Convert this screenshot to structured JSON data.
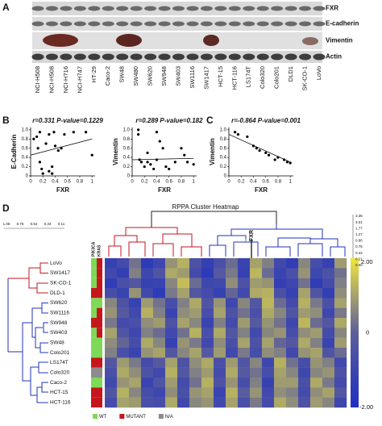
{
  "panel_a": {
    "label": "A",
    "proteins": [
      "FXR",
      "E-cadherin",
      "Vimentin",
      "Actin"
    ],
    "cell_lines": [
      "NCI-H508",
      "NCI-H508",
      "NCI-H716",
      "NCI-H747",
      "HT-29",
      "Caco-2",
      "SW48",
      "SW480",
      "SW620",
      "SW948",
      "SW403",
      "SW1116",
      "SW1417",
      "HCT-15",
      "HCT-116",
      "LS174T",
      "Colo320",
      "Colo201",
      "DLD1",
      "SK-CO-1",
      "LoVo"
    ]
  },
  "panel_b": {
    "label": "B",
    "plots": [
      {
        "title": "r=0.331 P-value=0.1229",
        "xlabel": "FXR",
        "ylabel": "E-Cadherin",
        "x": [
          0.05,
          0.1,
          0.12,
          0.15,
          0.18,
          0.2,
          0.25,
          0.3,
          0.35,
          0.38,
          0.4,
          0.45,
          0.5,
          0.55,
          0.35,
          0.7,
          0.9,
          1.0,
          0.3,
          0.15
        ],
        "y": [
          0.8,
          0.85,
          0.6,
          0.3,
          0.15,
          0.05,
          0.7,
          0.9,
          0.2,
          0.95,
          0.65,
          0.55,
          0.6,
          0.9,
          0.05,
          0.95,
          0.95,
          0.45,
          0.1,
          0.95
        ],
        "fit": {
          "x": [
            0,
            1
          ],
          "y": [
            0.45,
            0.8
          ]
        },
        "xlim": [
          0,
          1.05
        ],
        "ylim": [
          0,
          1.05
        ],
        "xticks": [
          0,
          0.2,
          0.4,
          0.6,
          0.8,
          1
        ],
        "yticks": [
          0,
          0.2,
          0.4,
          0.6,
          0.8,
          {
            "value": 1,
            "label": "1.0"
          }
        ]
      },
      {
        "title": "r=0.289 P-value=0.182",
        "xlabel": "FXR",
        "ylabel": "Vimentin",
        "x": [
          0.1,
          0.1,
          0.12,
          0.15,
          0.2,
          0.25,
          0.3,
          0.35,
          0.4,
          0.45,
          0.5,
          0.55,
          0.6,
          0.7,
          0.8,
          0.85,
          0.9,
          1.0,
          0.25,
          0.4
        ],
        "y": [
          1.0,
          0.9,
          0.35,
          0.3,
          0.2,
          0.3,
          0.25,
          0.15,
          0.95,
          0.75,
          0.6,
          0.2,
          0.15,
          0.3,
          0.6,
          0.45,
          0.3,
          0.25,
          0.5,
          0.35
        ],
        "fit": {
          "x": [
            0,
            1
          ],
          "y": [
            0.35,
            0.38
          ]
        },
        "xlim": [
          0,
          1.05
        ],
        "ylim": [
          0,
          1.05
        ],
        "xticks": [
          0,
          0.2,
          0.4,
          0.6,
          0.8,
          1
        ],
        "yticks": [
          0,
          0.2,
          0.4,
          0.6,
          0.8,
          {
            "value": 1,
            "label": "1.0"
          }
        ]
      }
    ]
  },
  "panel_c": {
    "label": "C",
    "plots": [
      {
        "title": "r=-0.864 P-value=0.001",
        "xlabel": "FXR",
        "ylabel": "Vimentin",
        "x": [
          0.1,
          0.15,
          0.3,
          0.4,
          0.45,
          0.5,
          0.6,
          0.65,
          0.75,
          0.8,
          0.9,
          0.95,
          1.0
        ],
        "y": [
          0.95,
          0.9,
          0.85,
          0.65,
          0.6,
          0.55,
          0.5,
          0.45,
          0.35,
          0.4,
          0.35,
          0.3,
          0.28
        ],
        "fit": {
          "x": [
            0,
            1
          ],
          "y": [
            0.9,
            0.3
          ]
        },
        "xlim": [
          0,
          1.05
        ],
        "ylim": [
          0,
          1.05
        ],
        "xticks": [
          0,
          0.2,
          0.4,
          0.6,
          0.8,
          1
        ],
        "yticks": [
          0,
          0.2,
          0.4,
          0.6,
          0.8,
          {
            "value": 1,
            "label": "1.0"
          }
        ]
      }
    ]
  },
  "panel_d": {
    "label": "D",
    "title": "RPPA Cluster Heatmap",
    "marker": "FXR",
    "mutation_headers": [
      "PIK3CA",
      "KRAS"
    ],
    "left_scale": [
      "1.08",
      "0.76",
      "0.54",
      "0.33",
      "0.11"
    ],
    "right_scale": [
      "3.35",
      "3.01",
      "1.77",
      "1.27",
      "0.96",
      "0.75",
      "0.42",
      "0.21",
      "0.00"
    ],
    "rows": [
      "LoVo",
      "SW1417",
      "SK-CO-1",
      "DLD-1",
      "SW620",
      "SW1116",
      "SW948",
      "SW403",
      "SW48",
      "Colo201",
      "LS174T",
      "Colo320",
      "Caco-2",
      "HCT-15",
      "HCT-116"
    ],
    "pik3ca": [
      "WT",
      "WT",
      "WT",
      "MUTANT",
      "WT",
      "WT",
      "MUTANT",
      "WT",
      "WT",
      "WT",
      "MUTANT",
      "N/A",
      "WT",
      "MUTANT",
      "MUTANT"
    ],
    "kras": [
      "MUTANT",
      "MUTANT",
      "MUTANT",
      "MUTANT",
      "WT",
      "MUTANT",
      "MUTANT",
      "MUTANT",
      "WT",
      "WT",
      "MUTANT",
      "N/A",
      "WT",
      "MUTANT",
      "MUTANT"
    ],
    "legend": [
      {
        "label": "WT",
        "color": "#7ed957"
      },
      {
        "label": "MUTANT",
        "color": "#c4161c"
      },
      {
        "label": "N/A",
        "color": "#8c8c8c"
      }
    ],
    "colorbar": {
      "max": {
        "value": 2,
        "label": "2.00"
      },
      "mid": 0,
      "min": {
        "value": -2,
        "label": "-2.00"
      },
      "low_color": "#1f2fc0",
      "mid_color": "#5c5e9c",
      "high_color": "#f0e63c"
    },
    "values": [
      [
        -1.2,
        -0.8,
        0.3,
        -1.5,
        -1.0,
        0.8,
        1.2,
        -0.5,
        -1.3,
        -0.6,
        0.2,
        -1.1,
        1.0,
        0.5,
        -0.9,
        -1.4,
        0.6,
        -0.7,
        -1.2,
        0.9
      ],
      [
        -0.9,
        -1.3,
        0.5,
        -1.0,
        -0.4,
        1.1,
        0.9,
        -0.8,
        -1.5,
        -0.2,
        0.4,
        -1.2,
        1.3,
        0.2,
        -1.1,
        -0.6,
        0.8,
        -1.0,
        -0.5,
        0.3
      ],
      [
        -1.4,
        -0.6,
        -0.3,
        -1.2,
        -1.1,
        0.6,
        1.4,
        0.2,
        -1.0,
        -0.9,
        0.7,
        -0.5,
        0.9,
        0.8,
        -1.3,
        -1.0,
        0.3,
        -1.4,
        -0.8,
        0.5
      ],
      [
        -0.7,
        -1.1,
        0.8,
        -0.9,
        -1.5,
        0.4,
        1.0,
        -0.3,
        -0.8,
        -1.2,
        0.1,
        -0.9,
        1.1,
        1.2,
        -0.6,
        -1.2,
        1.0,
        -0.4,
        -1.3,
        0.7
      ],
      [
        0.6,
        -0.5,
        -1.2,
        0.9,
        0.3,
        -0.7,
        0.5,
        1.1,
        -0.4,
        0.8,
        -1.0,
        0.6,
        -0.3,
        1.3,
        0.2,
        -0.8,
        1.2,
        0.4,
        -0.6,
        1.0
      ],
      [
        0.8,
        -0.2,
        -0.9,
        1.2,
        0.5,
        -1.1,
        0.7,
        0.9,
        -0.7,
        1.0,
        -0.5,
        0.3,
        -0.6,
        1.1,
        0.6,
        -0.4,
        0.9,
        0.7,
        -1.0,
        0.4
      ],
      [
        0.4,
        -0.8,
        -0.6,
        0.7,
        0.9,
        -0.5,
        1.0,
        0.6,
        -1.1,
        0.5,
        -0.8,
        0.9,
        -0.2,
        0.8,
        0.3,
        -1.0,
        1.3,
        0.2,
        -0.3,
        1.1
      ],
      [
        1.0,
        -0.4,
        -1.0,
        0.5,
        0.2,
        -0.9,
        0.3,
        1.2,
        -0.6,
        1.1,
        -0.3,
        0.5,
        -0.9,
        0.6,
        0.8,
        -0.7,
        0.7,
        0.9,
        -0.8,
        0.6
      ],
      [
        0.7,
        0.1,
        -0.7,
        1.1,
        0.6,
        -1.2,
        0.8,
        0.4,
        -0.9,
        0.7,
        -0.6,
        1.0,
        -0.5,
        1.0,
        0.1,
        -0.3,
        1.1,
        0.5,
        -1.1,
        0.9
      ],
      [
        0.5,
        -0.6,
        -1.1,
        0.8,
        1.0,
        -0.3,
        0.6,
        1.0,
        -0.2,
        0.9,
        -0.9,
        0.4,
        -0.7,
        0.7,
        0.5,
        -0.9,
        0.8,
        1.0,
        -0.4,
        0.2
      ],
      [
        -0.3,
        0.9,
        0.4,
        -0.8,
        -0.2,
        1.0,
        -0.5,
        0.7,
        1.1,
        -0.6,
        0.9,
        -0.4,
        0.6,
        -1.0,
        1.2,
        0.3,
        -0.7,
        0.8,
        0.5,
        -0.9
      ],
      [
        -0.6,
        1.1,
        0.7,
        -0.5,
        -0.9,
        1.2,
        -0.3,
        0.5,
        0.9,
        -0.8,
        1.1,
        -0.2,
        0.3,
        -0.7,
        1.0,
        0.6,
        -1.0,
        0.6,
        0.8,
        -0.5
      ],
      [
        -0.9,
        0.8,
        1.0,
        -1.1,
        -0.4,
        0.9,
        -0.8,
        0.3,
        1.2,
        -0.5,
        0.8,
        -0.7,
        0.5,
        -1.2,
        0.9,
        0.9,
        -0.6,
        1.1,
        0.4,
        -0.8
      ],
      [
        -0.4,
        1.2,
        0.6,
        -0.7,
        -1.0,
        0.7,
        -0.6,
        0.8,
        1.0,
        -1.1,
        1.2,
        -0.1,
        0.8,
        -0.9,
        0.7,
        0.5,
        -0.8,
        0.7,
        1.0,
        -0.3
      ],
      [
        -0.8,
        1.0,
        0.9,
        -0.6,
        -0.7,
        1.1,
        -0.9,
        0.6,
        0.8,
        -0.9,
        1.0,
        -0.6,
        0.4,
        -0.8,
        1.1,
        0.7,
        -0.5,
        0.9,
        0.6,
        -1.0
      ]
    ]
  }
}
